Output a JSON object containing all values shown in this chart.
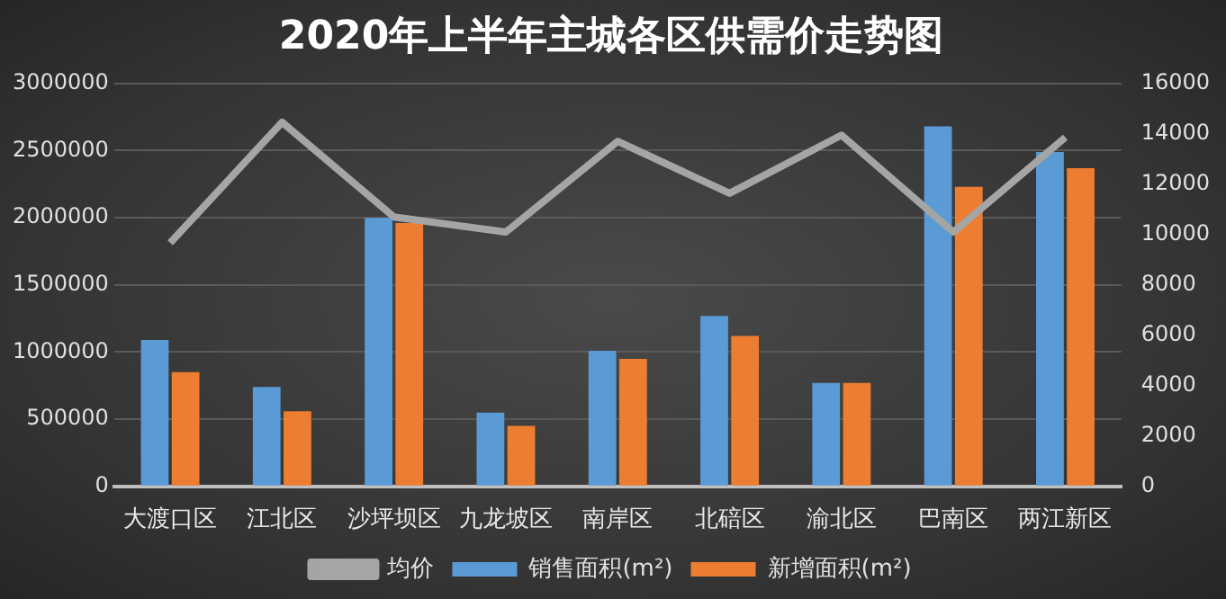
{
  "chart_data": {
    "type": "bar",
    "title": "2020年上半年主城各区供需价走势图",
    "categories": [
      "大渡口区",
      "江北区",
      "沙坪坝区",
      "九龙坡区",
      "南岸区",
      "北碚区",
      "渝北区",
      "巴南区",
      "两江新区"
    ],
    "series": [
      {
        "name": "销售面积(m²)",
        "color": "#5b9bd5",
        "values": [
          1090000,
          740000,
          2000000,
          550000,
          1010000,
          1270000,
          770000,
          2680000,
          2490000
        ]
      },
      {
        "name": "新增面积(m²)",
        "color": "#ed7d31",
        "values": [
          850000,
          560000,
          1960000,
          450000,
          950000,
          1120000,
          770000,
          2230000,
          2370000
        ]
      },
      {
        "name": "均价",
        "type": "line",
        "axis": "y2",
        "color": "#a5a5a5",
        "values": [
          9670,
          14460,
          10700,
          10100,
          13700,
          11640,
          13950,
          10100,
          13860
        ]
      }
    ],
    "ylim": [
      0,
      3000000
    ],
    "yticks": [
      0,
      500000,
      1000000,
      1500000,
      2000000,
      2500000,
      3000000
    ],
    "y2lim": [
      0,
      16000
    ],
    "y2ticks": [
      0,
      2000,
      4000,
      6000,
      8000,
      10000,
      12000,
      14000,
      16000
    ],
    "grid": "y",
    "legend": "bottom",
    "marker": "none"
  }
}
